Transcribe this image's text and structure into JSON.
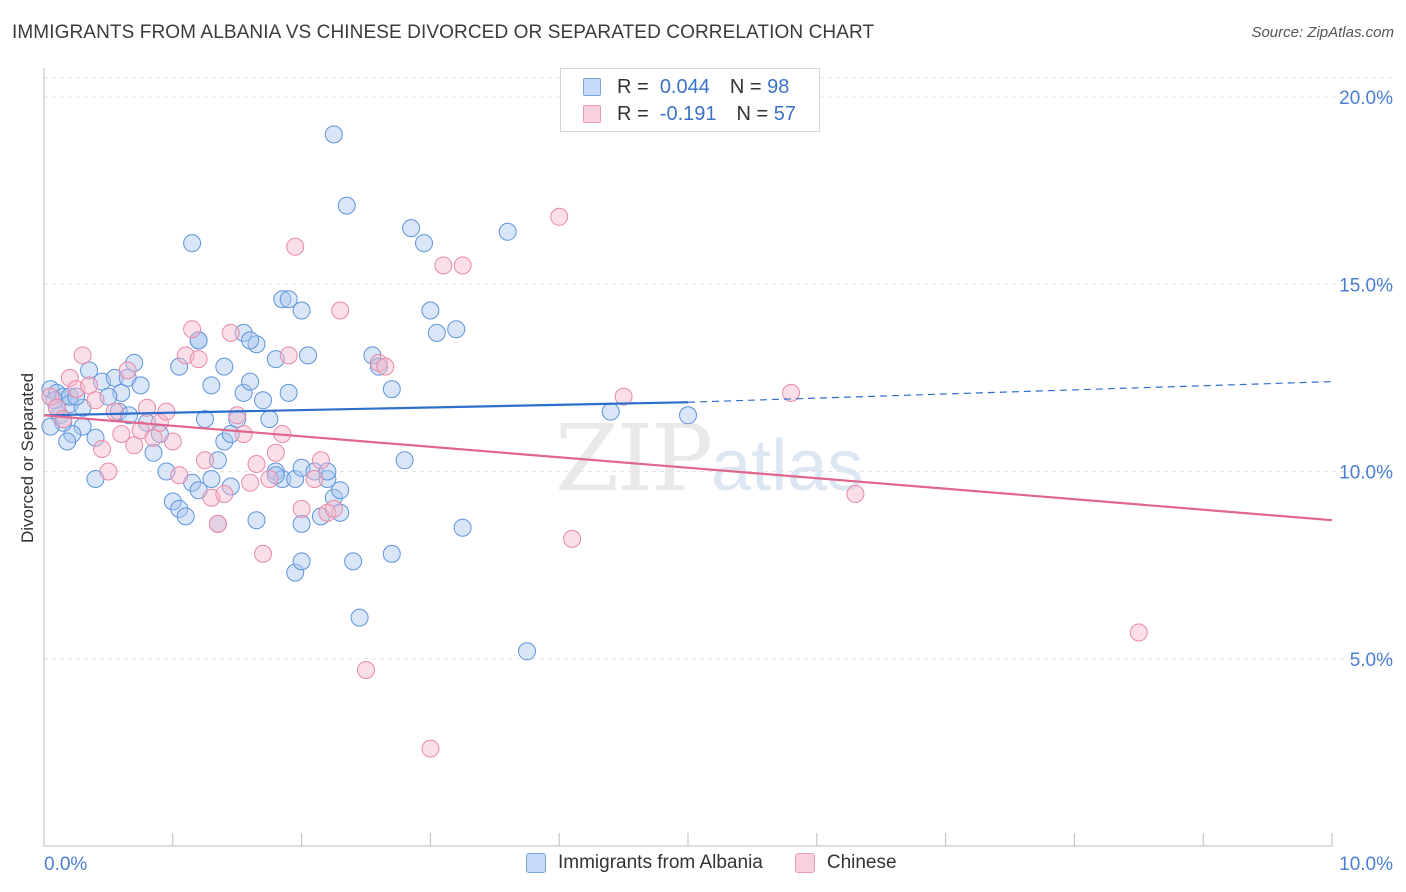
{
  "header": {
    "title": "IMMIGRANTS FROM ALBANIA VS CHINESE DIVORCED OR SEPARATED CORRELATION CHART",
    "source": "Source: ZipAtlas.com"
  },
  "watermark": {
    "zip": "ZIP",
    "atlas": "atlas"
  },
  "legend": {
    "rows": [
      {
        "r_label": "R =",
        "r_value": "0.044",
        "n_label": "N =",
        "n_value": "98",
        "color": "#a8c8f0"
      },
      {
        "r_label": "R =",
        "r_value": "-0.191",
        "n_label": "N =",
        "n_value": "57",
        "color": "#f5b8cb"
      }
    ]
  },
  "bottom_legend": [
    {
      "label": "Immigrants from Albania",
      "color": "#a8c8f0"
    },
    {
      "label": "Chinese",
      "color": "#f5b8cb"
    }
  ],
  "chart_data": {
    "type": "scatter",
    "ylabel": "Divorced or Separated",
    "xlim": [
      0,
      10
    ],
    "ylim": [
      0,
      20
    ],
    "x_tick_labels": [
      "0.0%",
      "10.0%"
    ],
    "y_ticks": [
      5,
      10,
      15,
      20
    ],
    "y_tick_labels": [
      "5.0%",
      "10.0%",
      "15.0%",
      "20.0%"
    ],
    "grid": true,
    "series": [
      {
        "name": "Immigrants from Albania",
        "color": "#a8c8f0",
        "stroke": "#5f95db",
        "trend": {
          "x0": 0.0,
          "y0": 11.5,
          "x1": 5.0,
          "y1": 11.85,
          "dash_x1": 10.0,
          "dash_y1": 12.4,
          "color": "#2f6fcc"
        },
        "points": [
          [
            0.05,
            12.2
          ],
          [
            0.1,
            12.1
          ],
          [
            0.15,
            12.0
          ],
          [
            0.08,
            11.9
          ],
          [
            0.2,
            11.8
          ],
          [
            0.12,
            11.5
          ],
          [
            0.3,
            11.2
          ],
          [
            0.22,
            11.0
          ],
          [
            0.4,
            10.9
          ],
          [
            0.18,
            10.8
          ],
          [
            0.35,
            12.7
          ],
          [
            0.45,
            12.4
          ],
          [
            0.55,
            12.5
          ],
          [
            0.6,
            12.1
          ],
          [
            0.65,
            12.5
          ],
          [
            0.7,
            12.9
          ],
          [
            0.75,
            12.3
          ],
          [
            0.5,
            12.0
          ],
          [
            0.58,
            11.6
          ],
          [
            0.66,
            11.5
          ],
          [
            0.8,
            11.3
          ],
          [
            0.9,
            11.0
          ],
          [
            0.85,
            10.5
          ],
          [
            0.95,
            10.0
          ],
          [
            1.0,
            9.2
          ],
          [
            1.05,
            9.0
          ],
          [
            1.1,
            8.8
          ],
          [
            1.15,
            9.7
          ],
          [
            1.2,
            9.5
          ],
          [
            1.3,
            9.8
          ],
          [
            1.35,
            10.3
          ],
          [
            1.4,
            10.8
          ],
          [
            1.45,
            11.0
          ],
          [
            1.5,
            11.4
          ],
          [
            1.55,
            12.1
          ],
          [
            1.6,
            12.4
          ],
          [
            1.7,
            11.9
          ],
          [
            1.75,
            11.4
          ],
          [
            1.8,
            10.0
          ],
          [
            1.85,
            9.8
          ],
          [
            1.25,
            11.4
          ],
          [
            1.3,
            12.3
          ],
          [
            1.2,
            13.5
          ],
          [
            1.4,
            12.8
          ],
          [
            1.55,
            13.7
          ],
          [
            1.65,
            13.4
          ],
          [
            1.8,
            13.0
          ],
          [
            1.9,
            12.1
          ],
          [
            1.95,
            9.8
          ],
          [
            2.0,
            10.1
          ],
          [
            2.1,
            10.0
          ],
          [
            2.2,
            9.8
          ],
          [
            2.25,
            9.3
          ],
          [
            2.3,
            8.9
          ],
          [
            2.0,
            8.6
          ],
          [
            2.15,
            8.8
          ],
          [
            2.2,
            10.0
          ],
          [
            1.45,
            9.6
          ],
          [
            1.35,
            8.6
          ],
          [
            1.05,
            12.8
          ],
          [
            1.15,
            16.1
          ],
          [
            1.2,
            13.5
          ],
          [
            1.6,
            13.5
          ],
          [
            1.85,
            14.6
          ],
          [
            1.9,
            14.6
          ],
          [
            2.0,
            14.3
          ],
          [
            2.05,
            13.1
          ],
          [
            1.8,
            9.9
          ],
          [
            1.65,
            8.7
          ],
          [
            1.95,
            7.3
          ],
          [
            2.0,
            7.6
          ],
          [
            2.4,
            7.6
          ],
          [
            2.45,
            6.1
          ],
          [
            2.7,
            7.8
          ],
          [
            2.3,
            9.5
          ],
          [
            2.55,
            13.1
          ],
          [
            2.6,
            12.8
          ],
          [
            2.7,
            12.2
          ],
          [
            2.8,
            10.3
          ],
          [
            2.85,
            16.5
          ],
          [
            2.95,
            16.1
          ],
          [
            3.0,
            14.3
          ],
          [
            3.05,
            13.7
          ],
          [
            3.2,
            13.8
          ],
          [
            3.25,
            8.5
          ],
          [
            3.6,
            16.4
          ],
          [
            3.75,
            5.2
          ],
          [
            4.4,
            11.6
          ],
          [
            5.0,
            11.5
          ],
          [
            2.25,
            19.0
          ],
          [
            2.35,
            17.1
          ],
          [
            0.4,
            9.8
          ],
          [
            0.3,
            11.7
          ],
          [
            0.2,
            12.0
          ],
          [
            0.1,
            11.7
          ],
          [
            0.15,
            11.3
          ],
          [
            0.25,
            12.0
          ],
          [
            0.05,
            11.2
          ]
        ]
      },
      {
        "name": "Chinese",
        "color": "#f5b8cb",
        "stroke": "#e88aa8",
        "trend": {
          "x0": 0.0,
          "y0": 11.5,
          "x1": 10.0,
          "y1": 8.7,
          "color": "#e0668e"
        },
        "points": [
          [
            0.05,
            12.0
          ],
          [
            0.1,
            11.7
          ],
          [
            0.15,
            11.4
          ],
          [
            0.2,
            12.5
          ],
          [
            0.25,
            12.2
          ],
          [
            0.3,
            13.1
          ],
          [
            0.35,
            12.3
          ],
          [
            0.4,
            11.9
          ],
          [
            0.45,
            10.6
          ],
          [
            0.5,
            10.0
          ],
          [
            0.55,
            11.6
          ],
          [
            0.6,
            11.0
          ],
          [
            0.65,
            12.7
          ],
          [
            0.7,
            10.7
          ],
          [
            0.75,
            11.1
          ],
          [
            0.8,
            11.7
          ],
          [
            0.85,
            10.9
          ],
          [
            0.9,
            11.3
          ],
          [
            0.95,
            11.6
          ],
          [
            1.0,
            10.8
          ],
          [
            1.05,
            9.9
          ],
          [
            1.1,
            13.1
          ],
          [
            1.15,
            13.8
          ],
          [
            1.2,
            13.0
          ],
          [
            1.25,
            10.3
          ],
          [
            1.3,
            9.3
          ],
          [
            1.35,
            8.6
          ],
          [
            1.4,
            9.4
          ],
          [
            1.45,
            13.7
          ],
          [
            1.5,
            11.5
          ],
          [
            1.55,
            11.0
          ],
          [
            1.6,
            9.7
          ],
          [
            1.65,
            10.2
          ],
          [
            1.7,
            7.8
          ],
          [
            1.75,
            9.8
          ],
          [
            1.8,
            10.5
          ],
          [
            1.85,
            11.0
          ],
          [
            1.9,
            13.1
          ],
          [
            1.95,
            16.0
          ],
          [
            2.0,
            9.0
          ],
          [
            2.1,
            9.8
          ],
          [
            2.15,
            10.3
          ],
          [
            2.2,
            8.9
          ],
          [
            2.25,
            9.0
          ],
          [
            2.3,
            14.3
          ],
          [
            2.5,
            4.7
          ],
          [
            2.6,
            12.9
          ],
          [
            2.65,
            12.8
          ],
          [
            3.0,
            2.6
          ],
          [
            3.1,
            15.5
          ],
          [
            3.25,
            15.5
          ],
          [
            4.0,
            16.8
          ],
          [
            4.1,
            8.2
          ],
          [
            4.5,
            12.0
          ],
          [
            5.8,
            12.1
          ],
          [
            6.3,
            9.4
          ],
          [
            8.5,
            5.7
          ]
        ]
      }
    ]
  }
}
